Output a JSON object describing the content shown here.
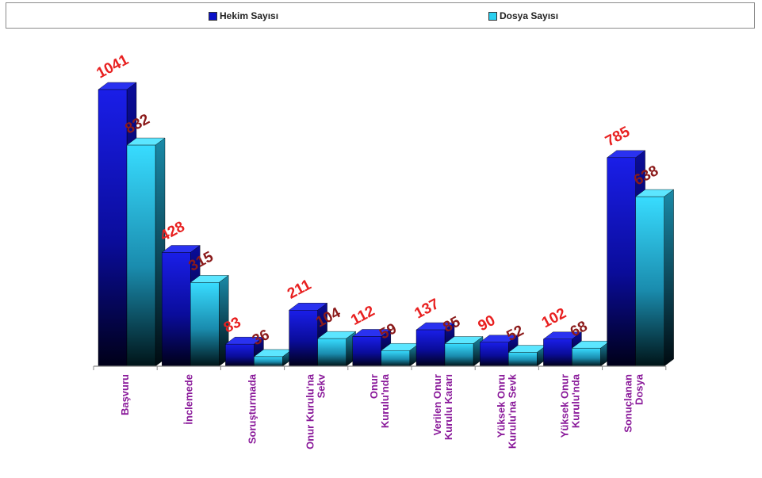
{
  "legend": {
    "items": [
      {
        "label": "Hekim Sayısı",
        "color": "#0a10c8"
      },
      {
        "label": "Dosya Sayısı",
        "color": "#2ad0f0"
      }
    ]
  },
  "chart_data": {
    "type": "bar",
    "title": "",
    "xlabel": "",
    "ylabel": "",
    "ylim": [
      0,
      1100
    ],
    "grid": false,
    "legend_position": "top",
    "categories": [
      "Başvuru",
      "İnclemede",
      "Soruşturmada",
      "Onur Kurulu'na Sekv",
      "Onur Kurulu'nda",
      "Verilen Onur Kurulu Kararı",
      "Yüksek Onru Kurulu'na Sevk",
      "Yüksek Onur Kurulu'nda",
      "Sonuçlanan Dosya"
    ],
    "series": [
      {
        "name": "Hekim Sayısı",
        "color": "#0a10c8",
        "label_color": "#e82020",
        "values": [
          1041,
          428,
          83,
          211,
          112,
          137,
          90,
          102,
          785
        ]
      },
      {
        "name": "Dosya Sayısı",
        "color": "#2ad0f0",
        "label_color": "#8b1a1a",
        "values": [
          832,
          315,
          36,
          104,
          59,
          85,
          52,
          68,
          638
        ]
      }
    ]
  }
}
